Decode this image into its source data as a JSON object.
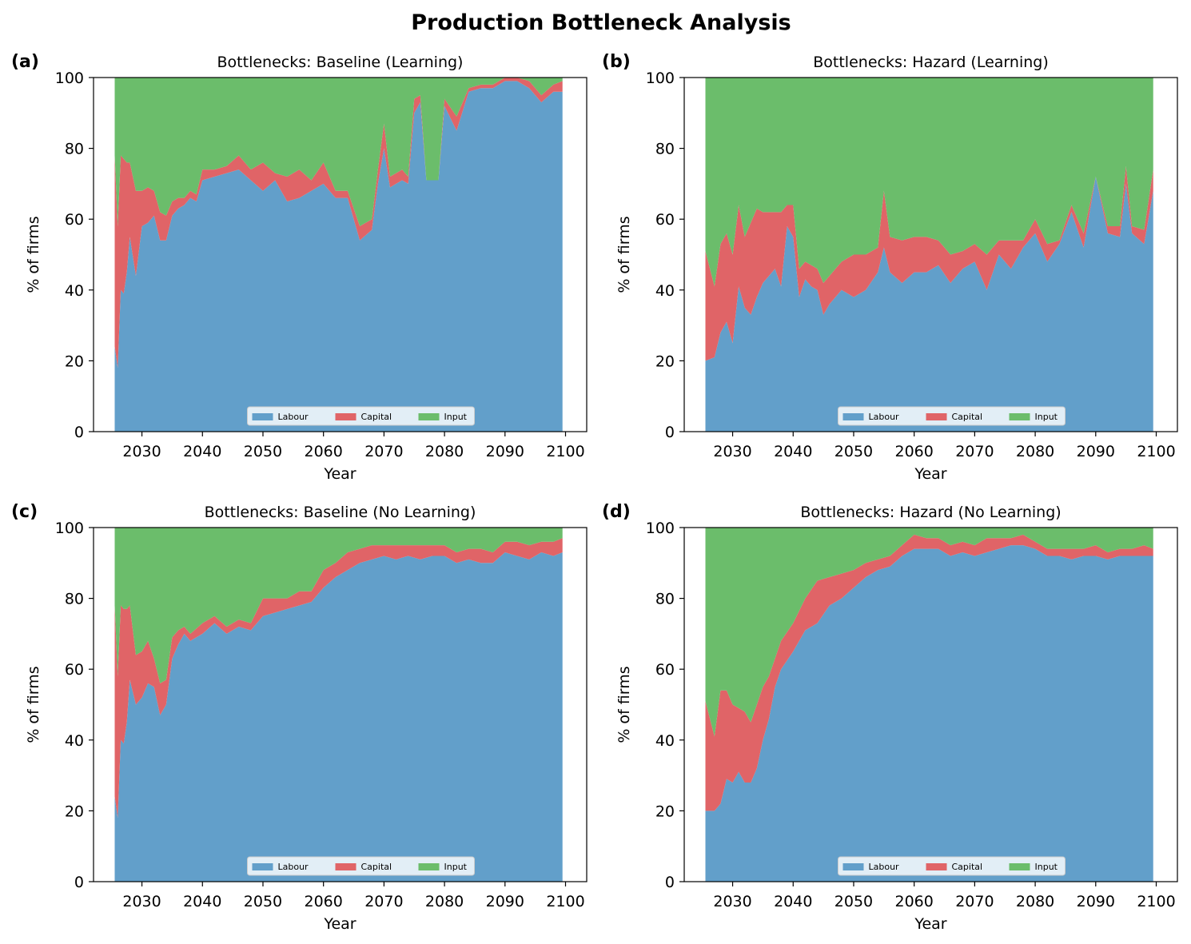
{
  "suptitle": "Production Bottleneck Analysis",
  "colors": {
    "labour": "#629fca",
    "capital": "#e06467",
    "input": "#6bbd6b"
  },
  "chart_data": [
    {
      "type": "area",
      "stacked": true,
      "panel_label": "(a)",
      "title": "Bottlenecks: Baseline (Learning)",
      "xlabel": "Year",
      "ylabel": "% of firms",
      "xlim": [
        2022,
        2103.5
      ],
      "ylim": [
        0,
        100
      ],
      "xticks": [
        2030,
        2040,
        2050,
        2060,
        2070,
        2080,
        2090,
        2100
      ],
      "yticks": [
        0,
        20,
        40,
        60,
        80,
        100
      ],
      "legend": [
        "Labour",
        "Capital",
        "Input"
      ],
      "legend_loc": "lower center",
      "x": [
        2025.5,
        2026,
        2026.5,
        2027,
        2027.5,
        2028,
        2029,
        2030,
        2031,
        2032,
        2033,
        2034,
        2035,
        2036,
        2037,
        2038,
        2039,
        2040,
        2042,
        2044,
        2046,
        2048,
        2050,
        2052,
        2054,
        2056,
        2058,
        2060,
        2062,
        2064,
        2066,
        2068,
        2069,
        2070,
        2071,
        2072,
        2073,
        2074,
        2075,
        2076,
        2077,
        2078,
        2079,
        2080,
        2082,
        2084,
        2086,
        2088,
        2090,
        2092,
        2094,
        2096,
        2098,
        2099.5
      ],
      "series": [
        {
          "name": "Labour",
          "values": [
            24,
            18,
            40,
            39,
            45,
            55,
            44,
            58,
            59,
            61,
            54,
            54,
            61,
            63,
            64,
            66,
            65,
            71,
            72,
            73,
            74,
            71,
            68,
            71,
            65,
            66,
            68,
            70,
            66,
            66,
            54,
            57,
            70,
            80,
            69,
            70,
            71,
            70,
            90,
            93,
            71,
            71,
            71,
            92,
            85,
            96,
            97,
            97,
            99,
            99,
            97,
            93,
            96,
            96
          ]
        },
        {
          "name": "Capital",
          "values": [
            54,
            40,
            38,
            38,
            31,
            21,
            24,
            10,
            10,
            7,
            8,
            7,
            4,
            3,
            2,
            2,
            2,
            3,
            2,
            2,
            4,
            3,
            8,
            2,
            7,
            8,
            3,
            6,
            2,
            2,
            4,
            3,
            4,
            7,
            3,
            3,
            3,
            2,
            4,
            2,
            0,
            0,
            0,
            2,
            4,
            1,
            1,
            1,
            1,
            1,
            2,
            2,
            2,
            3
          ]
        },
        {
          "name": "Input",
          "values": [
            22,
            42,
            22,
            23,
            24,
            24,
            32,
            32,
            31,
            32,
            38,
            39,
            35,
            34,
            34,
            32,
            33,
            26,
            26,
            25,
            22,
            26,
            24,
            27,
            28,
            26,
            29,
            24,
            32,
            32,
            42,
            40,
            26,
            13,
            28,
            27,
            26,
            28,
            6,
            5,
            29,
            29,
            29,
            6,
            11,
            3,
            2,
            2,
            0,
            0,
            1,
            5,
            2,
            1
          ]
        }
      ]
    },
    {
      "type": "area",
      "stacked": true,
      "panel_label": "(b)",
      "title": "Bottlenecks: Hazard (Learning)",
      "xlabel": "Year",
      "ylabel": "% of firms",
      "xlim": [
        2022,
        2103.5
      ],
      "ylim": [
        0,
        100
      ],
      "xticks": [
        2030,
        2040,
        2050,
        2060,
        2070,
        2080,
        2090,
        2100
      ],
      "yticks": [
        0,
        20,
        40,
        60,
        80,
        100
      ],
      "legend": [
        "Labour",
        "Capital",
        "Input"
      ],
      "legend_loc": "lower center",
      "x": [
        2025.5,
        2027,
        2028,
        2029,
        2030,
        2031,
        2032,
        2033,
        2034,
        2035,
        2036,
        2037,
        2038,
        2039,
        2040,
        2041,
        2042,
        2043,
        2044,
        2045,
        2046,
        2048,
        2050,
        2052,
        2054,
        2055,
        2056,
        2058,
        2060,
        2062,
        2064,
        2066,
        2068,
        2070,
        2072,
        2074,
        2076,
        2078,
        2080,
        2082,
        2084,
        2086,
        2088,
        2090,
        2092,
        2094,
        2095,
        2096,
        2098,
        2099.5
      ],
      "series": [
        {
          "name": "Labour",
          "values": [
            20,
            21,
            28,
            31,
            25,
            41,
            35,
            33,
            38,
            42,
            44,
            46,
            41,
            58,
            55,
            38,
            43,
            41,
            40,
            33,
            36,
            40,
            38,
            40,
            45,
            52,
            45,
            42,
            45,
            45,
            47,
            42,
            46,
            48,
            40,
            50,
            46,
            52,
            56,
            48,
            53,
            62,
            52,
            72,
            56,
            55,
            70,
            56,
            53,
            68
          ]
        },
        {
          "name": "Capital",
          "values": [
            31,
            20,
            25,
            25,
            25,
            23,
            20,
            26,
            25,
            20,
            18,
            16,
            21,
            6,
            9,
            8,
            5,
            6,
            6,
            9,
            8,
            8,
            12,
            10,
            7,
            16,
            10,
            12,
            10,
            10,
            7,
            8,
            5,
            5,
            10,
            4,
            8,
            2,
            4,
            5,
            1,
            2,
            4,
            0,
            2,
            3,
            5,
            2,
            4,
            6
          ]
        },
        {
          "name": "Input",
          "values": [
            49,
            59,
            47,
            44,
            50,
            36,
            45,
            41,
            37,
            38,
            38,
            38,
            38,
            36,
            36,
            54,
            52,
            53,
            54,
            58,
            56,
            52,
            50,
            50,
            48,
            32,
            45,
            46,
            45,
            45,
            46,
            50,
            49,
            47,
            50,
            46,
            46,
            46,
            40,
            47,
            46,
            36,
            44,
            28,
            42,
            42,
            25,
            42,
            43,
            26
          ]
        }
      ]
    },
    {
      "type": "area",
      "stacked": true,
      "panel_label": "(c)",
      "title": "Bottlenecks: Baseline (No Learning)",
      "xlabel": "Year",
      "ylabel": "% of firms",
      "xlim": [
        2022,
        2103.5
      ],
      "ylim": [
        0,
        100
      ],
      "xticks": [
        2030,
        2040,
        2050,
        2060,
        2070,
        2080,
        2090,
        2100
      ],
      "yticks": [
        0,
        20,
        40,
        60,
        80,
        100
      ],
      "legend": [
        "Labour",
        "Capital",
        "Input"
      ],
      "legend_loc": "lower center",
      "x": [
        2025.5,
        2026,
        2026.5,
        2027,
        2027.5,
        2028,
        2029,
        2030,
        2031,
        2032,
        2033,
        2034,
        2035,
        2036,
        2037,
        2038,
        2040,
        2042,
        2044,
        2046,
        2048,
        2050,
        2052,
        2054,
        2056,
        2058,
        2060,
        2062,
        2064,
        2066,
        2068,
        2070,
        2072,
        2074,
        2076,
        2078,
        2080,
        2082,
        2084,
        2086,
        2088,
        2090,
        2092,
        2094,
        2096,
        2098,
        2099.5
      ],
      "series": [
        {
          "name": "Labour",
          "values": [
            24,
            18,
            40,
            39,
            45,
            57,
            50,
            52,
            56,
            55,
            47,
            50,
            63,
            67,
            70,
            68,
            70,
            73,
            70,
            72,
            71,
            75,
            76,
            77,
            78,
            79,
            83,
            86,
            88,
            90,
            91,
            92,
            91,
            92,
            91,
            92,
            92,
            90,
            91,
            90,
            90,
            93,
            92,
            91,
            93,
            92,
            93
          ]
        },
        {
          "name": "Capital",
          "values": [
            54,
            40,
            38,
            38,
            32,
            21,
            14,
            13,
            12,
            8,
            9,
            7,
            6,
            4,
            2,
            2,
            3,
            2,
            2,
            2,
            2,
            5,
            4,
            3,
            4,
            3,
            5,
            4,
            5,
            4,
            4,
            3,
            4,
            3,
            4,
            3,
            3,
            3,
            3,
            4,
            3,
            3,
            4,
            4,
            3,
            4,
            4
          ]
        },
        {
          "name": "Input",
          "values": [
            22,
            42,
            22,
            23,
            23,
            22,
            36,
            35,
            32,
            37,
            44,
            43,
            31,
            29,
            28,
            30,
            27,
            25,
            28,
            26,
            27,
            20,
            20,
            20,
            18,
            18,
            12,
            10,
            7,
            6,
            5,
            5,
            5,
            5,
            5,
            5,
            5,
            7,
            6,
            6,
            7,
            4,
            4,
            5,
            4,
            4,
            3
          ]
        }
      ]
    },
    {
      "type": "area",
      "stacked": true,
      "panel_label": "(d)",
      "title": "Bottlenecks: Hazard (No Learning)",
      "xlabel": "Year",
      "ylabel": "% of firms",
      "xlim": [
        2022,
        2103.5
      ],
      "ylim": [
        0,
        100
      ],
      "xticks": [
        2030,
        2040,
        2050,
        2060,
        2070,
        2080,
        2090,
        2100
      ],
      "yticks": [
        0,
        20,
        40,
        60,
        80,
        100
      ],
      "legend": [
        "Labour",
        "Capital",
        "Input"
      ],
      "legend_loc": "lower center",
      "x": [
        2025.5,
        2027,
        2028,
        2029,
        2030,
        2031,
        2032,
        2033,
        2034,
        2035,
        2036,
        2037,
        2038,
        2040,
        2042,
        2044,
        2046,
        2048,
        2050,
        2052,
        2054,
        2056,
        2058,
        2060,
        2062,
        2064,
        2066,
        2068,
        2070,
        2072,
        2074,
        2076,
        2078,
        2080,
        2082,
        2084,
        2086,
        2088,
        2090,
        2092,
        2094,
        2096,
        2098,
        2099.5
      ],
      "series": [
        {
          "name": "Labour",
          "values": [
            20,
            20,
            22,
            29,
            28,
            31,
            28,
            28,
            32,
            40,
            46,
            55,
            60,
            65,
            71,
            73,
            78,
            80,
            83,
            86,
            88,
            89,
            92,
            94,
            94,
            94,
            92,
            93,
            92,
            93,
            94,
            95,
            95,
            94,
            92,
            92,
            91,
            92,
            92,
            91,
            92,
            92,
            92,
            92
          ]
        },
        {
          "name": "Capital",
          "values": [
            31,
            21,
            32,
            25,
            22,
            18,
            20,
            17,
            18,
            15,
            12,
            8,
            8,
            8,
            9,
            12,
            8,
            7,
            5,
            4,
            3,
            3,
            3,
            4,
            3,
            3,
            3,
            3,
            3,
            4,
            3,
            2,
            3,
            2,
            2,
            2,
            3,
            2,
            3,
            2,
            2,
            2,
            3,
            2
          ]
        },
        {
          "name": "Input",
          "values": [
            49,
            59,
            46,
            46,
            50,
            51,
            52,
            55,
            50,
            45,
            42,
            37,
            32,
            27,
            20,
            15,
            14,
            13,
            12,
            10,
            9,
            8,
            5,
            2,
            3,
            3,
            5,
            4,
            5,
            3,
            3,
            3,
            2,
            4,
            6,
            6,
            6,
            6,
            5,
            7,
            6,
            6,
            5,
            6
          ]
        }
      ]
    }
  ]
}
